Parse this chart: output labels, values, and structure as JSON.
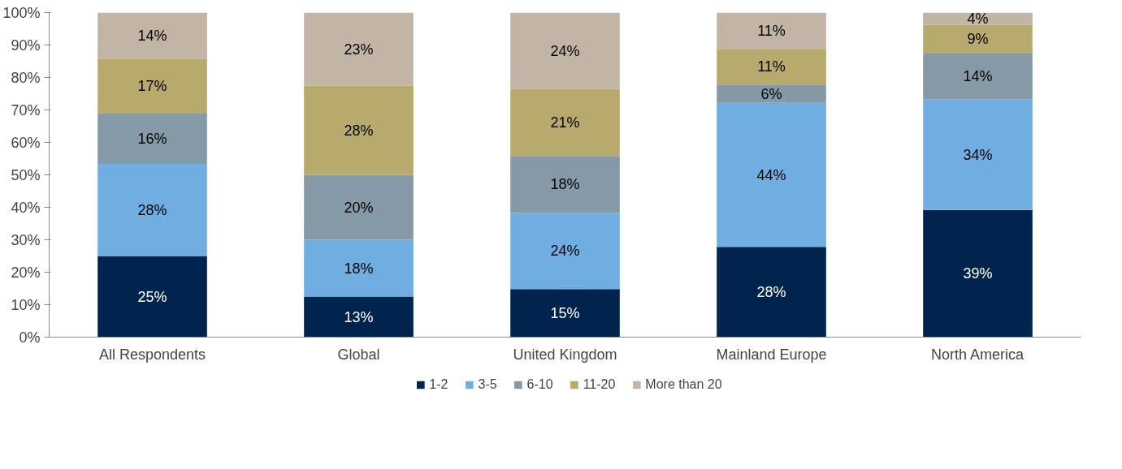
{
  "chart_data": {
    "type": "bar",
    "stacked": true,
    "categories": [
      "All Respondents",
      "Global",
      "United Kingdom",
      "Mainland Europe",
      "North America"
    ],
    "series": [
      {
        "name": "1-2",
        "color": "#00244d",
        "values": [
          25,
          12.5,
          14.8,
          27.8,
          39.2
        ],
        "value_labels": [
          "25%",
          "13%",
          "15%",
          "28%",
          "39%"
        ]
      },
      {
        "name": "3-5",
        "color": "#70aee2",
        "values": [
          28.4,
          17.5,
          23.5,
          44.4,
          34.1
        ],
        "value_labels": [
          "28%",
          "18%",
          "24%",
          "44%",
          "34%"
        ]
      },
      {
        "name": "6-10",
        "color": "#8599a6",
        "values": [
          15.5,
          20,
          17.5,
          5.6,
          14.1
        ],
        "value_labels": [
          "16%",
          "20%",
          "18%",
          "6%",
          "14%"
        ]
      },
      {
        "name": "11-20",
        "color": "#b8a96c",
        "values": [
          16.9,
          27.5,
          20.7,
          11,
          8.8
        ],
        "value_labels": [
          "17%",
          "28%",
          "21%",
          "11%",
          "9%"
        ]
      },
      {
        "name": "More than 20",
        "color": "#c2b5a5",
        "values": [
          14.2,
          22.5,
          23.5,
          11.2,
          3.8
        ],
        "value_labels": [
          "14%",
          "23%",
          "24%",
          "11%",
          "4%"
        ]
      }
    ],
    "ylim": [
      0,
      100
    ],
    "yticks": [
      {
        "value": 0,
        "label": "0%"
      },
      {
        "value": 10,
        "label": "10%"
      },
      {
        "value": 20,
        "label": "20%"
      },
      {
        "value": 30,
        "label": "30%"
      },
      {
        "value": 40,
        "label": "40%"
      },
      {
        "value": 50,
        "label": "50%"
      },
      {
        "value": 60,
        "label": "60%"
      },
      {
        "value": 70,
        "label": "70%"
      },
      {
        "value": 80,
        "label": "80%"
      },
      {
        "value": 90,
        "label": "90%"
      },
      {
        "value": 100,
        "label": "100%"
      }
    ],
    "grid": false,
    "legend": "bottom"
  }
}
